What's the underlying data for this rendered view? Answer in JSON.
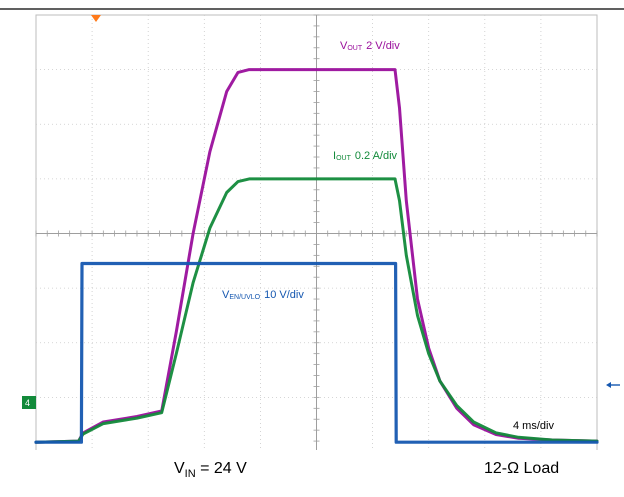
{
  "chart_data": {
    "type": "line",
    "x_unit": "ms",
    "timebase": "4 ms/div",
    "grid": true,
    "series": [
      {
        "name_main": "V",
        "name_sub": "OUT",
        "scale": "2 V/div",
        "color": "#9a0f9c",
        "points": [
          [
            0,
            0.18
          ],
          [
            3.8,
            0.2
          ],
          [
            4.2,
            0.35
          ],
          [
            6,
            0.55
          ],
          [
            9,
            0.65
          ],
          [
            11.2,
            0.75
          ],
          [
            12.5,
            2.2
          ],
          [
            14,
            4.0
          ],
          [
            15.5,
            5.5
          ],
          [
            17,
            6.6
          ],
          [
            18,
            6.95
          ],
          [
            19,
            7.0
          ],
          [
            32,
            7.0
          ],
          [
            32.4,
            6.3
          ],
          [
            33,
            4.6
          ],
          [
            34,
            2.8
          ],
          [
            35,
            1.9
          ],
          [
            36,
            1.3
          ],
          [
            37.5,
            0.8
          ],
          [
            39,
            0.5
          ],
          [
            41,
            0.32
          ],
          [
            43,
            0.25
          ],
          [
            46,
            0.22
          ],
          [
            50,
            0.2
          ]
        ]
      },
      {
        "name_main": "I",
        "name_sub": "OUT",
        "scale": "0.2 A/div",
        "color": "#128a3a",
        "points": [
          [
            0,
            0.18
          ],
          [
            3.8,
            0.2
          ],
          [
            4.2,
            0.33
          ],
          [
            6,
            0.52
          ],
          [
            9,
            0.62
          ],
          [
            11.2,
            0.72
          ],
          [
            12.5,
            1.8
          ],
          [
            14,
            3.1
          ],
          [
            15.5,
            4.1
          ],
          [
            17,
            4.75
          ],
          [
            18,
            4.95
          ],
          [
            19,
            5.0
          ],
          [
            32,
            5.0
          ],
          [
            32.4,
            4.6
          ],
          [
            33,
            3.6
          ],
          [
            34,
            2.5
          ],
          [
            35,
            1.8
          ],
          [
            36,
            1.3
          ],
          [
            37.5,
            0.85
          ],
          [
            39,
            0.55
          ],
          [
            41,
            0.35
          ],
          [
            43,
            0.27
          ],
          [
            46,
            0.22
          ],
          [
            50,
            0.2
          ]
        ]
      },
      {
        "name_main": "V",
        "name_sub": "EN/UVLO",
        "scale": "10 V/div",
        "color": "#1557b0",
        "points": [
          [
            0,
            0.18
          ],
          [
            4.05,
            0.18
          ],
          [
            4.1,
            3.45
          ],
          [
            32.05,
            3.45
          ],
          [
            32.1,
            0.18
          ],
          [
            50,
            0.18
          ]
        ]
      }
    ],
    "xlim": [
      0,
      50
    ],
    "ylim": [
      0,
      8
    ]
  },
  "conditions": {
    "vin_main": "V",
    "vin_sub": "IN",
    "vin_value": " = 24 V",
    "load": "12-Ω Load"
  }
}
